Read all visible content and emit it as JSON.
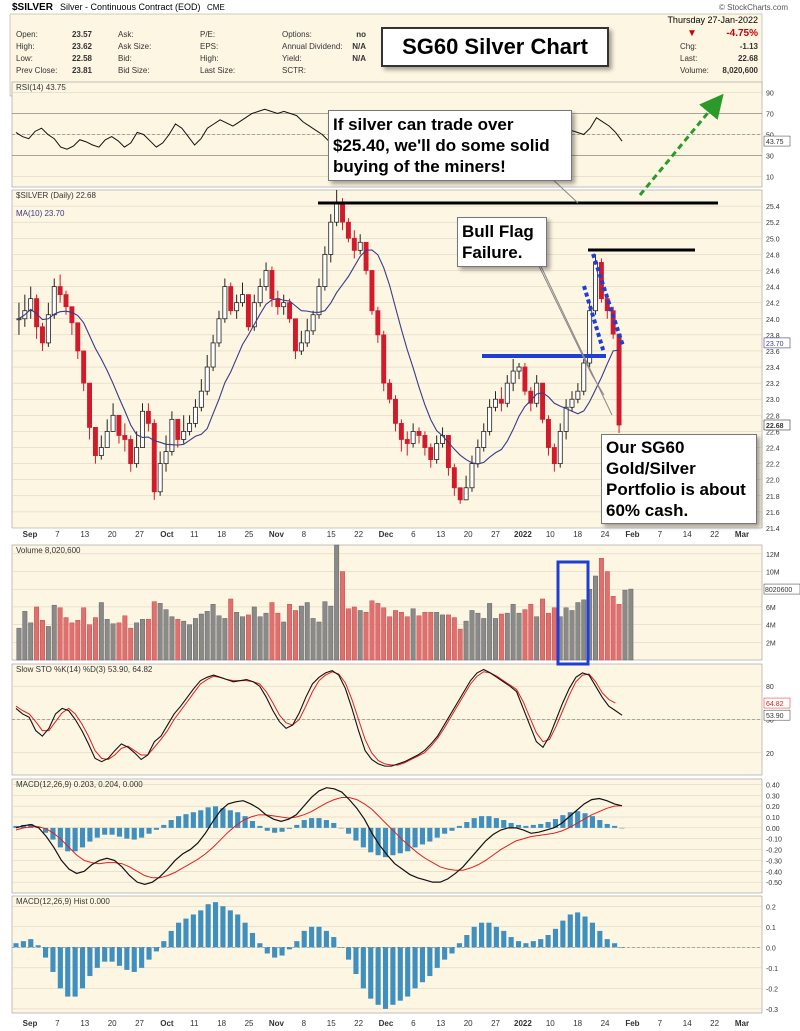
{
  "header": {
    "symbol": "$SILVER",
    "name": "Silver - Continuous Contract (EOD)",
    "exchange": "CME",
    "credit": "© StockCharts.com",
    "date": "Thursday  27-Jan-2022",
    "fields": [
      {
        "label": "Open:",
        "value": "23.57"
      },
      {
        "label": "High:",
        "value": "23.62"
      },
      {
        "label": "Low:",
        "value": "22.58"
      },
      {
        "label": "Prev Close:",
        "value": "23.81"
      }
    ],
    "fields2": [
      "Ask:",
      "Ask Size:",
      "Bid:",
      "Bid Size:"
    ],
    "fields3": [
      "P/E:",
      "EPS:",
      "High:",
      "Last Size:"
    ],
    "fields4": [
      {
        "label": "Options:",
        "value": "no"
      },
      {
        "label": "Annual Dividend:",
        "value": "N/A"
      },
      {
        "label": "Yield:",
        "value": "N/A"
      },
      {
        "label": "SCTR:",
        "value": ""
      }
    ],
    "right": [
      {
        "label": "Chg:",
        "value": "-1.13"
      },
      {
        "label": "Last:",
        "value": "22.68"
      },
      {
        "label": "Volume:",
        "value": "8,020,600"
      }
    ],
    "pct_change": "-4.75%",
    "down_arrow": "▼"
  },
  "annotations": {
    "title": "SG60 Silver Chart",
    "buy_callout": "If silver can trade over $25.40, we'll do some solid buying of the miners!",
    "flag_callout": "Bull Flag Failure.",
    "cash_callout": "Our SG60 Gold/Silver Portfolio is about 60% cash."
  },
  "chart_data": [
    {
      "type": "line",
      "panel": "RSI",
      "legend": "RSI(14) 43.75",
      "last_value": "43.75",
      "ylim": [
        0,
        100
      ],
      "ticks": [
        "90",
        "70",
        "50",
        "30",
        "10"
      ],
      "series": [
        {
          "name": "RSI(14)",
          "values": [
            52,
            48,
            46,
            53,
            56,
            50,
            46,
            38,
            36,
            39,
            45,
            43,
            40,
            38,
            45,
            48,
            44,
            38,
            42,
            52,
            50,
            44,
            38,
            42,
            50,
            60,
            56,
            48,
            40,
            46,
            56,
            60,
            64,
            61,
            58,
            62,
            66,
            70,
            72,
            74,
            72,
            70,
            72,
            70,
            68,
            62,
            58,
            54,
            50,
            44,
            42,
            46,
            48,
            44,
            40,
            37,
            38,
            40,
            44,
            50,
            56,
            58,
            56,
            52,
            50,
            52,
            54,
            52,
            50,
            48,
            46,
            44,
            42,
            40,
            42,
            44,
            42,
            48,
            52,
            54,
            52,
            50,
            48,
            52,
            56,
            58,
            56,
            54,
            52,
            50,
            56,
            66,
            62,
            58,
            52,
            43.75
          ]
        }
      ]
    },
    {
      "type": "candlestick",
      "panel": "price",
      "legend": "$SILVER (Daily) 22.68",
      "ma_legend": "MA(10) 23.70",
      "ma_value": "23.70",
      "last_value": "22.68",
      "ylim": [
        21.4,
        25.6
      ],
      "ticks": [
        "25.4",
        "25.2",
        "25.0",
        "24.8",
        "24.6",
        "24.4",
        "24.2",
        "24.0",
        "23.8",
        "23.6",
        "23.4",
        "23.2",
        "23.0",
        "22.8",
        "22.6",
        "22.4",
        "22.2",
        "22.0",
        "21.8",
        "21.6",
        "21.4"
      ],
      "x_labels": [
        "Sep",
        "7",
        "13",
        "20",
        "27",
        "Oct",
        "11",
        "18",
        "25",
        "Nov",
        "8",
        "15",
        "22",
        "Dec",
        "6",
        "13",
        "20",
        "27",
        "2022",
        "10",
        "18",
        "24",
        "Feb",
        "7",
        "14",
        "22",
        "Mar"
      ],
      "close": [
        24.0,
        24.1,
        24.25,
        23.9,
        23.7,
        24.05,
        24.4,
        24.3,
        24.15,
        23.95,
        23.6,
        23.2,
        22.65,
        22.3,
        22.4,
        22.6,
        22.8,
        22.55,
        22.5,
        22.2,
        22.4,
        22.85,
        22.7,
        21.85,
        22.2,
        22.35,
        22.75,
        22.5,
        22.6,
        22.7,
        22.9,
        23.1,
        23.4,
        23.7,
        24.0,
        24.4,
        24.1,
        24.2,
        24.3,
        23.9,
        24.2,
        24.4,
        24.6,
        24.25,
        24.15,
        24.2,
        24.0,
        23.6,
        23.7,
        23.85,
        24.05,
        24.4,
        24.8,
        25.2,
        25.45,
        25.2,
        25.0,
        24.85,
        24.95,
        24.6,
        24.1,
        23.8,
        23.2,
        23.0,
        22.7,
        22.5,
        22.45,
        22.6,
        22.55,
        22.4,
        22.25,
        22.45,
        22.55,
        22.15,
        21.9,
        21.75,
        21.9,
        22.2,
        22.4,
        22.6,
        22.9,
        23.0,
        22.95,
        23.2,
        23.35,
        23.4,
        23.1,
        22.95,
        23.2,
        22.75,
        22.4,
        22.2,
        22.6,
        22.9,
        23.0,
        23.1,
        23.45,
        24.1,
        24.7,
        24.25,
        24.1,
        23.81,
        22.68
      ],
      "high": [
        24.2,
        24.3,
        24.4,
        24.3,
        23.95,
        24.2,
        24.5,
        24.55,
        24.35,
        24.1,
        23.8,
        23.4,
        23.0,
        22.6,
        22.55,
        22.75,
        22.95,
        22.8,
        22.7,
        22.55,
        22.6,
        22.95,
        22.95,
        22.75,
        22.35,
        22.55,
        22.85,
        22.75,
        22.8,
        22.8,
        23.0,
        23.25,
        23.55,
        23.8,
        24.1,
        24.5,
        24.45,
        24.3,
        24.45,
        24.3,
        24.3,
        24.5,
        24.7,
        24.65,
        24.35,
        24.3,
        24.25,
        23.8,
        23.85,
        24.0,
        24.1,
        24.5,
        24.9,
        25.3,
        25.6,
        25.5,
        25.25,
        25.1,
        25.05,
        24.95,
        24.6,
        24.15,
        23.85,
        23.25,
        23.05,
        22.75,
        22.6,
        22.7,
        22.65,
        22.6,
        22.45,
        22.55,
        22.65,
        22.55,
        22.2,
        21.9,
        22.05,
        22.3,
        22.5,
        22.7,
        23.0,
        23.1,
        23.15,
        23.3,
        23.5,
        23.45,
        23.45,
        23.15,
        23.3,
        23.2,
        22.8,
        22.45,
        22.7,
        23.0,
        23.1,
        23.2,
        23.5,
        24.2,
        24.8,
        24.75,
        24.3,
        24.15,
        23.62
      ],
      "low": [
        23.8,
        23.9,
        24.0,
        23.75,
        23.6,
        23.65,
        24.0,
        24.2,
        24.05,
        23.8,
        23.5,
        23.1,
        22.5,
        22.2,
        22.25,
        22.45,
        22.6,
        22.45,
        22.35,
        22.1,
        22.15,
        22.4,
        22.6,
        21.75,
        21.8,
        22.1,
        22.3,
        22.4,
        22.45,
        22.55,
        22.65,
        22.85,
        23.05,
        23.35,
        23.65,
        23.95,
        24.05,
        24.0,
        24.15,
        23.85,
        23.85,
        24.15,
        24.35,
        24.15,
        24.05,
        24.05,
        23.95,
        23.5,
        23.55,
        23.65,
        23.8,
        24.0,
        24.35,
        24.7,
        25.15,
        25.1,
        24.95,
        24.75,
        24.8,
        24.55,
        24.05,
        23.7,
        23.1,
        22.95,
        22.6,
        22.35,
        22.3,
        22.4,
        22.45,
        22.3,
        22.15,
        22.2,
        22.4,
        22.05,
        21.8,
        21.7,
        21.75,
        21.85,
        22.15,
        22.35,
        22.55,
        22.85,
        22.85,
        22.9,
        23.1,
        23.25,
        23.05,
        22.85,
        22.9,
        22.7,
        22.3,
        22.1,
        22.15,
        22.5,
        22.85,
        22.95,
        23.05,
        23.4,
        24.05,
        24.2,
        24.0,
        23.75,
        22.58
      ]
    },
    {
      "type": "bar",
      "panel": "volume",
      "legend": "Volume 8,020,600",
      "last_value": "8020600",
      "ylim": [
        0,
        13
      ],
      "unit": "M",
      "ticks": [
        "12M",
        "10M",
        "8M",
        "6M",
        "4M",
        "2M"
      ],
      "values": [
        3.6,
        5.5,
        4.2,
        6.0,
        4.5,
        3.8,
        6.2,
        5.9,
        4.8,
        4.2,
        4.5,
        5.9,
        4.0,
        4.8,
        6.5,
        4.6,
        4.1,
        4.2,
        5.0,
        3.6,
        4.2,
        4.6,
        4.6,
        6.6,
        6.4,
        5.7,
        4.9,
        4.6,
        4.4,
        4.0,
        4.7,
        5.2,
        5.5,
        6.3,
        5.0,
        4.7,
        6.9,
        5.4,
        4.9,
        5.1,
        6.0,
        4.9,
        5.3,
        6.5,
        5.3,
        4.3,
        6.3,
        5.6,
        6.1,
        6.5,
        4.7,
        4.3,
        6.6,
        6.1,
        13.0,
        10.0,
        5.8,
        6.0,
        5.6,
        5.4,
        6.7,
        6.4,
        5.9,
        4.9,
        5.6,
        5.4,
        4.9,
        5.8,
        5.0,
        5.4,
        5.4,
        5.4,
        5.1,
        5.1,
        4.8,
        3.5,
        4.4,
        5.6,
        5.3,
        4.7,
        6.4,
        4.7,
        5.2,
        5.3,
        6.3,
        5.3,
        5.7,
        6.3,
        4.9,
        6.9,
        5.3,
        5.9,
        4.9,
        5.9,
        5.6,
        6.5,
        6.8,
        8.0,
        9.5,
        11.5,
        10.0,
        7.2,
        6.3,
        7.9,
        8.02
      ]
    },
    {
      "type": "line",
      "panel": "stochastic",
      "legend": "Slow STO %K(14) %D(3) 53.90, 64.82",
      "k_value": "53.90",
      "d_value": "64.82",
      "ylim": [
        0,
        100
      ],
      "ticks": [
        "80",
        "50",
        "20"
      ],
      "series": [
        {
          "name": "%K(14)",
          "values": [
            60,
            55,
            52,
            40,
            35,
            42,
            55,
            60,
            58,
            50,
            40,
            28,
            15,
            12,
            15,
            22,
            28,
            25,
            20,
            14,
            18,
            30,
            35,
            45,
            55,
            62,
            70,
            78,
            85,
            88,
            90,
            88,
            86,
            84,
            85,
            86,
            84,
            80,
            70,
            58,
            48,
            42,
            45,
            56,
            70,
            82,
            88,
            92,
            94,
            90,
            78,
            60,
            40,
            22,
            14,
            10,
            8,
            8,
            10,
            12,
            15,
            18,
            22,
            28,
            35,
            45,
            55,
            65,
            75,
            85,
            92,
            95,
            92,
            88,
            84,
            80,
            75,
            60,
            45,
            30,
            25,
            35,
            50,
            65,
            78,
            88,
            92,
            90,
            80,
            70,
            62,
            58,
            53.9
          ]
        },
        {
          "name": "%D(3)",
          "values": [
            62,
            58,
            55,
            48,
            40,
            40,
            48,
            56,
            60,
            55,
            46,
            35,
            22,
            15,
            14,
            18,
            24,
            26,
            22,
            18,
            18,
            25,
            32,
            40,
            50,
            58,
            66,
            74,
            82,
            86,
            89,
            88,
            86,
            85,
            85,
            85,
            84,
            82,
            75,
            65,
            54,
            47,
            45,
            50,
            62,
            75,
            85,
            90,
            93,
            91,
            83,
            68,
            50,
            32,
            20,
            13,
            10,
            9,
            9,
            11,
            14,
            17,
            20,
            26,
            33,
            42,
            52,
            62,
            72,
            82,
            89,
            93,
            92,
            89,
            85,
            81,
            77,
            66,
            52,
            38,
            30,
            32,
            44,
            58,
            72,
            84,
            90,
            91,
            84,
            74,
            68,
            64.82
          ]
        }
      ]
    },
    {
      "type": "line",
      "panel": "MACD",
      "legend": "MACD(12,26,9) 0.203, 0.204, 0.000",
      "values_text": [
        "0.203",
        "0.204",
        "0.000"
      ],
      "ylim": [
        -0.6,
        0.45
      ],
      "ticks": [
        "0.40",
        "0.30",
        "0.20",
        "0.10",
        "0.00",
        "-0.10",
        "-0.20",
        "-0.30",
        "-0.40",
        "-0.50"
      ],
      "series": [
        {
          "name": "MACD",
          "values": [
            0.0,
            0.02,
            0.03,
            0.0,
            -0.08,
            -0.18,
            -0.3,
            -0.38,
            -0.42,
            -0.4,
            -0.34,
            -0.3,
            -0.28,
            -0.3,
            -0.36,
            -0.44,
            -0.5,
            -0.52,
            -0.5,
            -0.45,
            -0.38,
            -0.3,
            -0.24,
            -0.2,
            -0.14,
            -0.05,
            0.06,
            0.16,
            0.22,
            0.24,
            0.25,
            0.22,
            0.18,
            0.12,
            0.08,
            0.06,
            0.08,
            0.12,
            0.2,
            0.28,
            0.34,
            0.37,
            0.36,
            0.33,
            0.26,
            0.18,
            0.08,
            -0.05,
            -0.16,
            -0.25,
            -0.33,
            -0.38,
            -0.43,
            -0.46,
            -0.48,
            -0.5,
            -0.5,
            -0.47,
            -0.42,
            -0.36,
            -0.28,
            -0.2,
            -0.12,
            -0.06,
            -0.02,
            0.0,
            0.0,
            -0.02,
            -0.05,
            -0.04,
            -0.02,
            0.0,
            0.04,
            0.1,
            0.16,
            0.22,
            0.26,
            0.27,
            0.25,
            0.22,
            0.203
          ]
        },
        {
          "name": "Signal",
          "values": [
            -0.02,
            0.0,
            0.01,
            0.01,
            -0.01,
            -0.05,
            -0.11,
            -0.18,
            -0.25,
            -0.3,
            -0.32,
            -0.33,
            -0.32,
            -0.32,
            -0.33,
            -0.36,
            -0.4,
            -0.44,
            -0.46,
            -0.46,
            -0.44,
            -0.41,
            -0.37,
            -0.33,
            -0.29,
            -0.24,
            -0.18,
            -0.11,
            -0.04,
            0.02,
            0.07,
            0.1,
            0.12,
            0.12,
            0.11,
            0.1,
            0.09,
            0.1,
            0.12,
            0.15,
            0.19,
            0.23,
            0.26,
            0.28,
            0.28,
            0.26,
            0.22,
            0.17,
            0.1,
            0.03,
            -0.04,
            -0.11,
            -0.17,
            -0.23,
            -0.28,
            -0.32,
            -0.36,
            -0.38,
            -0.39,
            -0.39,
            -0.37,
            -0.34,
            -0.3,
            -0.25,
            -0.2,
            -0.16,
            -0.12,
            -0.1,
            -0.08,
            -0.07,
            -0.06,
            -0.05,
            -0.03,
            0.0,
            0.04,
            0.08,
            0.12,
            0.15,
            0.18,
            0.2,
            0.204
          ]
        }
      ]
    },
    {
      "type": "bar",
      "panel": "MACD histogram",
      "legend": "MACD(12,26,9) Hist 0.000",
      "last_value": "0.000",
      "ylim": [
        -0.32,
        0.25
      ],
      "ticks": [
        "0.2",
        "0.1",
        "0.0",
        "-0.1",
        "-0.2",
        "-0.3"
      ],
      "values": [
        0.02,
        0.03,
        0.04,
        0.01,
        -0.05,
        -0.12,
        -0.2,
        -0.24,
        -0.24,
        -0.2,
        -0.14,
        -0.1,
        -0.07,
        -0.07,
        -0.09,
        -0.11,
        -0.12,
        -0.1,
        -0.06,
        -0.02,
        0.03,
        0.08,
        0.12,
        0.14,
        0.16,
        0.18,
        0.21,
        0.22,
        0.2,
        0.18,
        0.16,
        0.12,
        0.07,
        0.02,
        -0.03,
        -0.05,
        -0.04,
        -0.01,
        0.03,
        0.08,
        0.1,
        0.1,
        0.08,
        0.05,
        0.0,
        -0.06,
        -0.13,
        -0.2,
        -0.25,
        -0.28,
        -0.3,
        -0.28,
        -0.26,
        -0.24,
        -0.2,
        -0.17,
        -0.14,
        -0.1,
        -0.06,
        -0.03,
        0.02,
        0.06,
        0.1,
        0.12,
        0.12,
        0.1,
        0.08,
        0.05,
        0.03,
        0.02,
        0.03,
        0.04,
        0.06,
        0.09,
        0.13,
        0.16,
        0.17,
        0.15,
        0.12,
        0.08,
        0.04,
        0.02,
        0.0
      ]
    }
  ]
}
